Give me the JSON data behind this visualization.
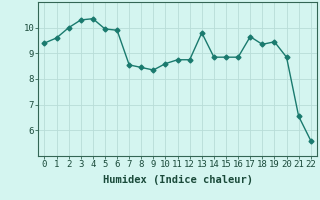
{
  "x": [
    0,
    1,
    2,
    3,
    4,
    5,
    6,
    7,
    8,
    9,
    10,
    11,
    12,
    13,
    14,
    15,
    16,
    17,
    18,
    19,
    20,
    21,
    22
  ],
  "y": [
    9.4,
    9.6,
    10.0,
    10.3,
    10.35,
    9.95,
    9.9,
    8.55,
    8.45,
    8.35,
    8.6,
    8.75,
    8.75,
    9.8,
    8.85,
    8.85,
    8.85,
    9.65,
    9.35,
    9.45,
    8.85,
    6.55,
    5.6
  ],
  "line_color": "#1a7a6e",
  "marker": "D",
  "marker_size": 2.5,
  "bg_color": "#d4f5f0",
  "grid_color": "#b8ddd8",
  "xlabel": "Humidex (Indice chaleur)",
  "xlim": [
    -0.5,
    22.5
  ],
  "ylim": [
    5.0,
    11.0
  ],
  "yticks": [
    6,
    7,
    8,
    9,
    10
  ],
  "xticks": [
    0,
    1,
    2,
    3,
    4,
    5,
    6,
    7,
    8,
    9,
    10,
    11,
    12,
    13,
    14,
    15,
    16,
    17,
    18,
    19,
    20,
    21,
    22
  ],
  "tick_label_fontsize": 6.5,
  "xlabel_fontsize": 7.5,
  "line_width": 1.0,
  "spine_color": "#336655"
}
